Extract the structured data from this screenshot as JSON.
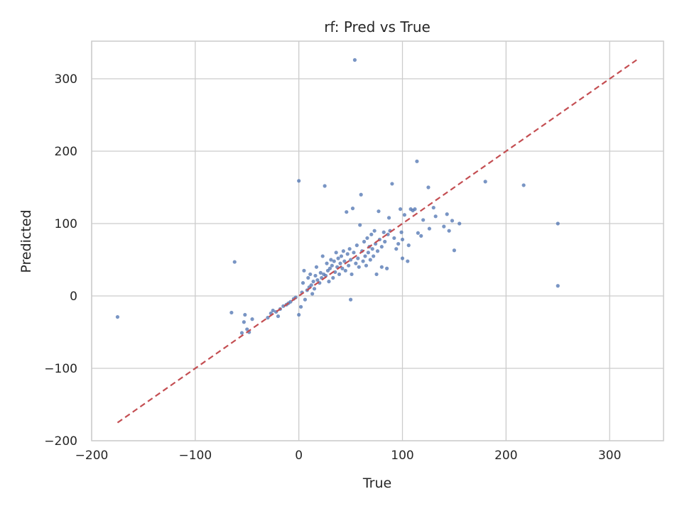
{
  "chart_data": {
    "type": "scatter",
    "title": "rf: Pred vs True",
    "xlabel": "True",
    "ylabel": "Predicted",
    "xlim": [
      -200,
      352
    ],
    "ylim": [
      -200,
      352
    ],
    "xticks": [
      -200,
      -100,
      0,
      100,
      200,
      300
    ],
    "yticks": [
      -200,
      -100,
      0,
      100,
      200,
      300
    ],
    "xtick_labels": [
      "−200",
      "−100",
      "0",
      "100",
      "200",
      "300"
    ],
    "ytick_labels": [
      "−200",
      "−100",
      "0",
      "100",
      "200",
      "300"
    ],
    "grid": true,
    "colors": {
      "points": "#4c72b0",
      "reference_line": "#c44e52",
      "grid": "#cccccc",
      "spine": "#cccccc",
      "text": "#262626"
    },
    "reference_line": {
      "style": "dashed",
      "x": [
        -175,
        326
      ],
      "y": [
        -175,
        326
      ]
    },
    "points": [
      [
        -175,
        -29
      ],
      [
        -62,
        47
      ],
      [
        -65,
        -23
      ],
      [
        -55,
        -51
      ],
      [
        -53,
        -36
      ],
      [
        -52,
        -26
      ],
      [
        -50,
        -46
      ],
      [
        -48,
        -50
      ],
      [
        -45,
        -32
      ],
      [
        -30,
        -30
      ],
      [
        -27,
        -24
      ],
      [
        -25,
        -20
      ],
      [
        -22,
        -22
      ],
      [
        -20,
        -28
      ],
      [
        -18,
        -18
      ],
      [
        -15,
        -14
      ],
      [
        -12,
        -12
      ],
      [
        -10,
        -10
      ],
      [
        -8,
        -8
      ],
      [
        -5,
        -4
      ],
      [
        -3,
        -2
      ],
      [
        0,
        -26
      ],
      [
        0,
        159
      ],
      [
        2,
        -15
      ],
      [
        3,
        5
      ],
      [
        4,
        18
      ],
      [
        5,
        35
      ],
      [
        6,
        -5
      ],
      [
        8,
        8
      ],
      [
        9,
        25
      ],
      [
        10,
        12
      ],
      [
        11,
        30
      ],
      [
        12,
        15
      ],
      [
        13,
        3
      ],
      [
        14,
        20
      ],
      [
        15,
        10
      ],
      [
        16,
        28
      ],
      [
        17,
        40
      ],
      [
        18,
        22
      ],
      [
        20,
        18
      ],
      [
        21,
        32
      ],
      [
        22,
        25
      ],
      [
        23,
        55
      ],
      [
        24,
        30
      ],
      [
        25,
        152
      ],
      [
        26,
        28
      ],
      [
        27,
        45
      ],
      [
        28,
        35
      ],
      [
        29,
        20
      ],
      [
        30,
        38
      ],
      [
        31,
        50
      ],
      [
        32,
        42
      ],
      [
        33,
        25
      ],
      [
        34,
        48
      ],
      [
        35,
        33
      ],
      [
        36,
        60
      ],
      [
        37,
        40
      ],
      [
        38,
        52
      ],
      [
        39,
        30
      ],
      [
        40,
        45
      ],
      [
        41,
        55
      ],
      [
        42,
        38
      ],
      [
        43,
        62
      ],
      [
        44,
        48
      ],
      [
        45,
        35
      ],
      [
        46,
        116
      ],
      [
        47,
        58
      ],
      [
        48,
        42
      ],
      [
        49,
        65
      ],
      [
        50,
        50
      ],
      [
        50,
        -5
      ],
      [
        51,
        30
      ],
      [
        52,
        121
      ],
      [
        53,
        60
      ],
      [
        54,
        326
      ],
      [
        55,
        45
      ],
      [
        56,
        70
      ],
      [
        57,
        52
      ],
      [
        58,
        40
      ],
      [
        59,
        98
      ],
      [
        60,
        140
      ],
      [
        61,
        62
      ],
      [
        62,
        48
      ],
      [
        63,
        75
      ],
      [
        64,
        55
      ],
      [
        65,
        42
      ],
      [
        66,
        80
      ],
      [
        67,
        60
      ],
      [
        68,
        68
      ],
      [
        69,
        50
      ],
      [
        70,
        85
      ],
      [
        71,
        65
      ],
      [
        72,
        55
      ],
      [
        73,
        90
      ],
      [
        74,
        72
      ],
      [
        75,
        30
      ],
      [
        76,
        62
      ],
      [
        77,
        117
      ],
      [
        78,
        78
      ],
      [
        80,
        40
      ],
      [
        80,
        68
      ],
      [
        82,
        88
      ],
      [
        83,
        75
      ],
      [
        85,
        38
      ],
      [
        86,
        85
      ],
      [
        87,
        108
      ],
      [
        88,
        90
      ],
      [
        90,
        155
      ],
      [
        92,
        80
      ],
      [
        94,
        65
      ],
      [
        96,
        72
      ],
      [
        98,
        120
      ],
      [
        99,
        88
      ],
      [
        100,
        52
      ],
      [
        100,
        78
      ],
      [
        102,
        112
      ],
      [
        105,
        48
      ],
      [
        106,
        70
      ],
      [
        108,
        120
      ],
      [
        110,
        118
      ],
      [
        112,
        120
      ],
      [
        114,
        186
      ],
      [
        115,
        87
      ],
      [
        118,
        83
      ],
      [
        120,
        105
      ],
      [
        125,
        150
      ],
      [
        126,
        93
      ],
      [
        130,
        122
      ],
      [
        132,
        110
      ],
      [
        140,
        96
      ],
      [
        143,
        113
      ],
      [
        145,
        90
      ],
      [
        148,
        104
      ],
      [
        150,
        63
      ],
      [
        155,
        100
      ],
      [
        180,
        158
      ],
      [
        217,
        153
      ],
      [
        250,
        100
      ],
      [
        250,
        14
      ]
    ]
  }
}
